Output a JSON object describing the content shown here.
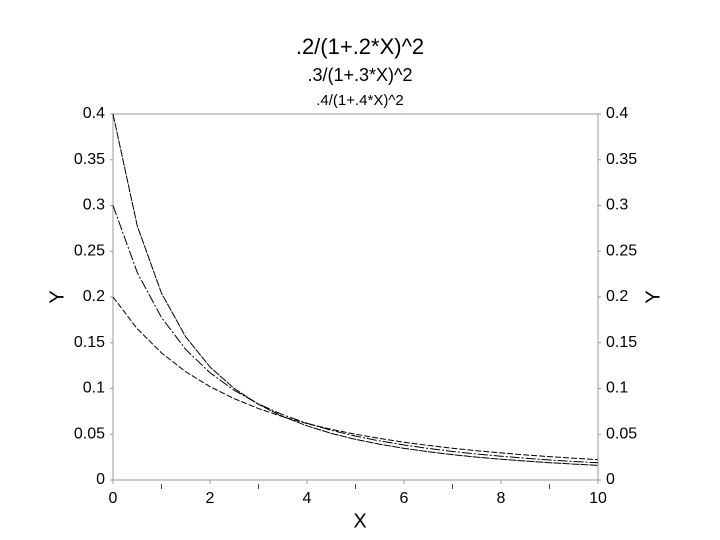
{
  "chart_data": {
    "type": "line",
    "xlabel": "X",
    "ylabel": "Y",
    "y2label": "Y",
    "x": [
      0,
      0.5,
      1,
      1.5,
      2,
      2.5,
      3,
      3.5,
      4,
      4.5,
      5,
      5.5,
      6,
      6.5,
      7,
      7.5,
      8,
      8.5,
      9,
      9.5,
      10
    ],
    "series": [
      {
        "name": ".2/(1+.2*X)^2",
        "color": "#000000",
        "values": [
          0.2,
          0.1653,
          0.1389,
          0.1183,
          0.102,
          0.0889,
          0.0781,
          0.0692,
          0.0617,
          0.0554,
          0.05,
          0.0454,
          0.0413,
          0.0378,
          0.0347,
          0.032,
          0.0296,
          0.0274,
          0.0255,
          0.0238,
          0.0222
        ]
      },
      {
        "name": ".3/(1+.3*X)^2",
        "color": "#000000",
        "values": [
          0.3,
          0.2268,
          0.1775,
          0.1427,
          0.1172,
          0.098,
          0.0831,
          0.0714,
          0.062,
          0.0543,
          0.048,
          0.0427,
          0.0383,
          0.0345,
          0.0312,
          0.0284,
          0.026,
          0.0238,
          0.0219,
          0.0202,
          0.0188
        ]
      },
      {
        "name": ".4/(1+.4*X)^2",
        "color": "#000000",
        "values": [
          0.4,
          0.2778,
          0.2041,
          0.1563,
          0.1235,
          0.1,
          0.0826,
          0.0694,
          0.0592,
          0.051,
          0.0444,
          0.0391,
          0.0346,
          0.0309,
          0.0277,
          0.025,
          0.0227,
          0.0207,
          0.0189,
          0.0174,
          0.016
        ]
      }
    ],
    "xlim": [
      0,
      10
    ],
    "xticks": [
      0,
      2,
      4,
      6,
      8,
      10
    ],
    "xminorticks": [
      1,
      3,
      5,
      7,
      9
    ],
    "ylim": [
      0,
      0.4
    ],
    "yticks": [
      0,
      0.05,
      0.1,
      0.15,
      0.2,
      0.25,
      0.3,
      0.35,
      0.4
    ],
    "y2lim": [
      0,
      0.4
    ],
    "y2ticks": [
      0,
      0.05,
      0.1,
      0.15,
      0.2,
      0.25,
      0.3,
      0.35,
      0.4
    ]
  }
}
